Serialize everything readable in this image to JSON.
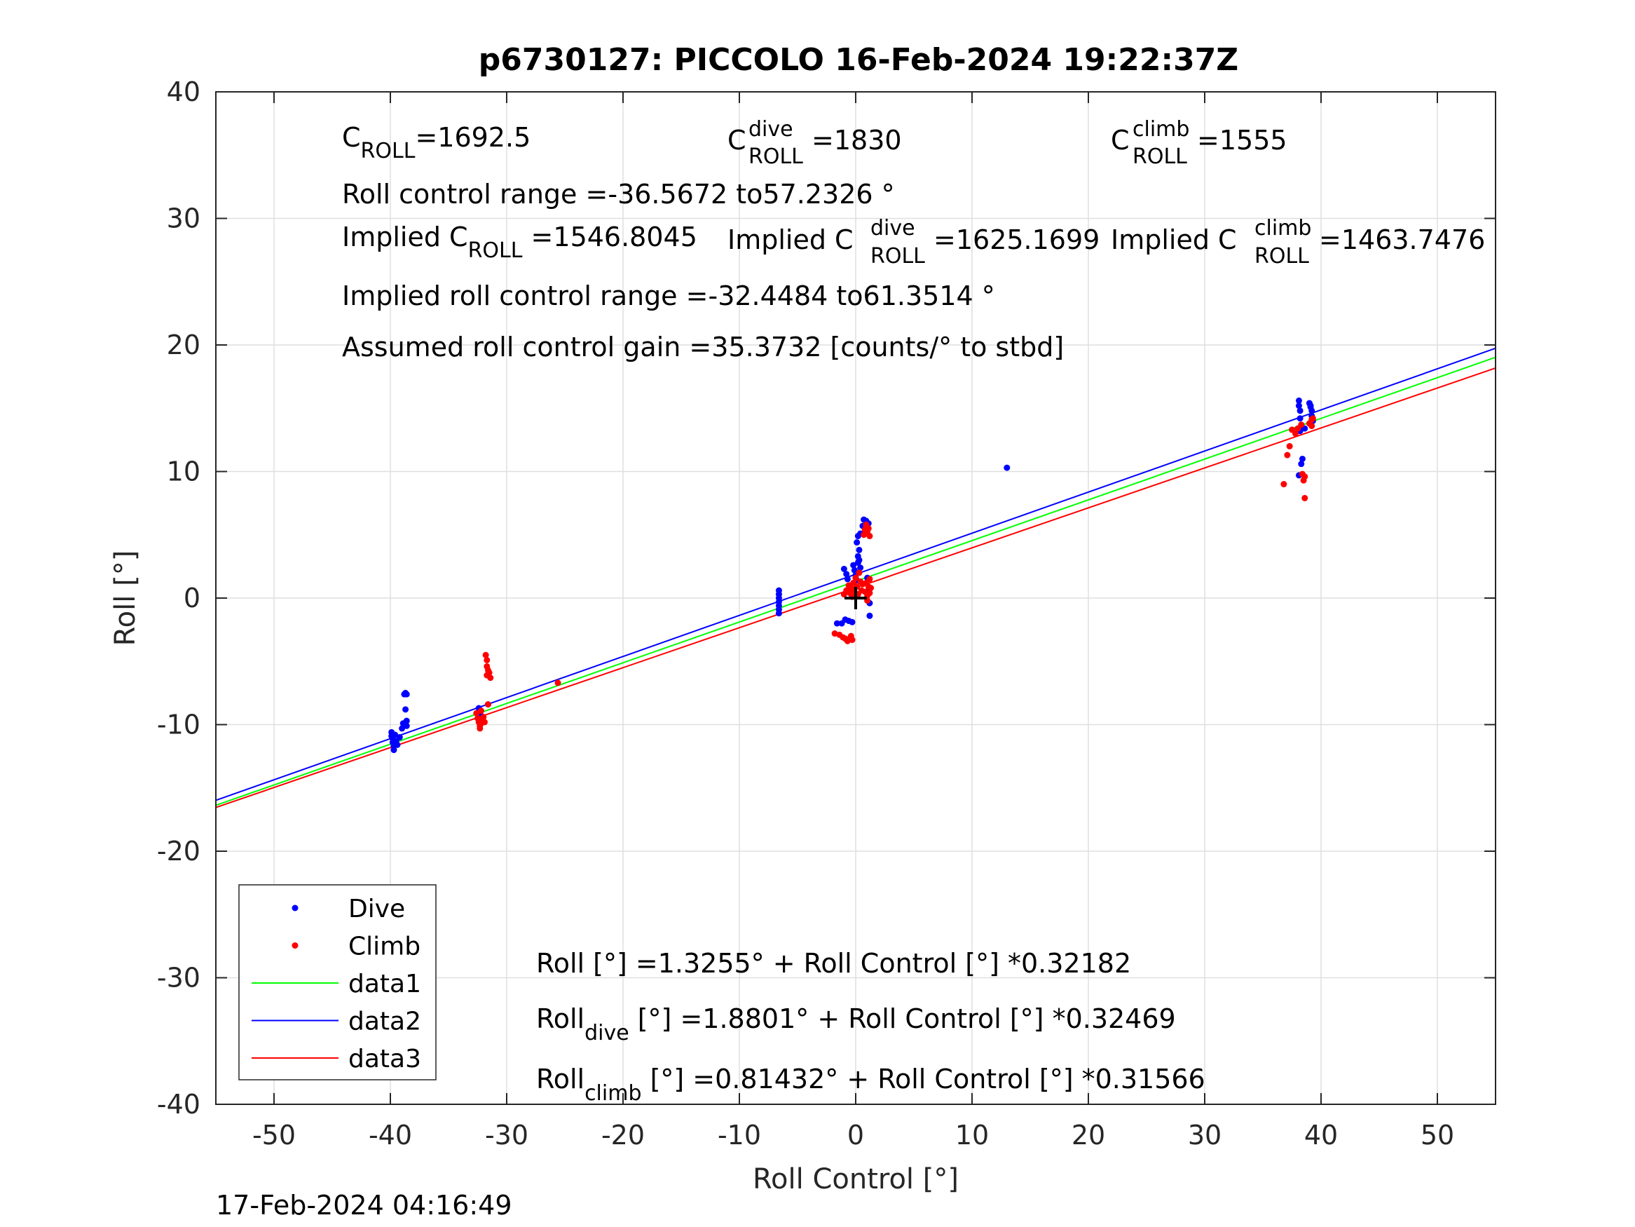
{
  "chart_data": {
    "type": "scatter",
    "title": "p6730127: PICCOLO 16-Feb-2024 19:22:37Z",
    "xlabel": "Roll Control [°]",
    "ylabel": "Roll [°]",
    "xlim": [
      -55,
      55
    ],
    "ylim": [
      -40,
      40
    ],
    "xticks": [
      -50,
      -40,
      -30,
      -20,
      -10,
      0,
      10,
      20,
      30,
      40,
      50
    ],
    "yticks": [
      -40,
      -30,
      -20,
      -10,
      0,
      10,
      20,
      30,
      40
    ],
    "grid": true,
    "legend_position": "lower-left",
    "timestamp": "17-Feb-2024 04:16:49",
    "legend": [
      {
        "label": "Dive",
        "kind": "marker",
        "color": "#0000ff"
      },
      {
        "label": "Climb",
        "kind": "marker",
        "color": "#ff0000"
      },
      {
        "label": "data1",
        "kind": "line",
        "color": "#00ff00"
      },
      {
        "label": "data2",
        "kind": "line",
        "color": "#0000ff"
      },
      {
        "label": "data3",
        "kind": "line",
        "color": "#ff0000"
      }
    ],
    "annotations": {
      "c_roll": {
        "main": "C",
        "sub": "ROLL",
        "value": "=1692.5"
      },
      "c_roll_dive": {
        "main": "C",
        "sup": "dive",
        "sub": "ROLL",
        "value": " =1830"
      },
      "c_roll_climb": {
        "main": "C",
        "sup": "climb",
        "sub": "ROLL",
        "value": " =1555"
      },
      "range": "Roll control range =-36.5672 to57.2326 °",
      "implied_c_roll": {
        "main": "Implied C",
        "sub": "ROLL",
        "value": " =1546.8045"
      },
      "implied_c_roll_dive": {
        "main": "Implied C",
        "sup": "dive",
        "sub": "ROLL",
        "value": " =1625.1699"
      },
      "implied_c_roll_climb": {
        "main": "Implied C",
        "sup": "climb",
        "sub": "ROLL",
        "value": " =1463.7476"
      },
      "implied_range": "Implied roll control range =-32.4484 to61.3514 °",
      "gain": "Assumed roll control gain =35.3732 [counts/° to stbd]",
      "fit_all": "Roll [°] =1.3255° + Roll Control [°] *0.32182",
      "fit_dive": {
        "main": "Roll",
        "sub": "dive",
        "rest": " [°] =1.8801° + Roll Control [°] *0.32469"
      },
      "fit_climb": {
        "main": "Roll",
        "sub": "climb",
        "rest": " [°] =0.81432° + Roll Control [°] *0.31566"
      }
    },
    "series": [
      {
        "name": "data1",
        "type": "line",
        "color": "#00ff00",
        "intercept": 1.3255,
        "slope": 0.32182
      },
      {
        "name": "data2",
        "type": "line",
        "color": "#0000ff",
        "intercept": 1.8801,
        "slope": 0.32469
      },
      {
        "name": "data3",
        "type": "line",
        "color": "#ff0000",
        "intercept": 0.81432,
        "slope": 0.31566
      },
      {
        "name": "Dive",
        "type": "scatter",
        "color": "#0000ff",
        "points": [
          [
            -39.9,
            -10.6
          ],
          [
            -39.9,
            -10.9
          ],
          [
            -39.8,
            -11.1
          ],
          [
            -39.8,
            -11.4
          ],
          [
            -39.7,
            -11.7
          ],
          [
            -39.7,
            -12.0
          ],
          [
            -39.6,
            -10.8
          ],
          [
            -39.5,
            -11.3
          ],
          [
            -39.4,
            -11.6
          ],
          [
            -39.2,
            -11.0
          ],
          [
            -39.0,
            -10.3
          ],
          [
            -38.9,
            -9.9
          ],
          [
            -38.8,
            -7.6
          ],
          [
            -38.7,
            -7.5
          ],
          [
            -38.6,
            -7.6
          ],
          [
            -38.7,
            -8.8
          ],
          [
            -38.6,
            -9.7
          ],
          [
            -38.6,
            -10.1
          ],
          [
            -32.4,
            -8.7
          ],
          [
            -32.2,
            -9.3
          ],
          [
            -31.6,
            -8.4
          ],
          [
            -6.6,
            0.6
          ],
          [
            -6.6,
            0.3
          ],
          [
            -6.6,
            0.0
          ],
          [
            -6.6,
            -0.3
          ],
          [
            -6.6,
            -0.6
          ],
          [
            -6.6,
            -0.9
          ],
          [
            -6.6,
            -1.2
          ],
          [
            -1.6,
            -2.0
          ],
          [
            -1.2,
            -2.0
          ],
          [
            -1.0,
            2.3
          ],
          [
            -0.9,
            -1.7
          ],
          [
            -0.8,
            1.9
          ],
          [
            -0.7,
            1.5
          ],
          [
            -0.6,
            -1.8
          ],
          [
            -0.5,
            1.0
          ],
          [
            -0.4,
            0.6
          ],
          [
            -0.3,
            -1.9
          ],
          [
            -0.2,
            2.6
          ],
          [
            -0.1,
            2.2
          ],
          [
            0.0,
            1.8
          ],
          [
            0.1,
            1.4
          ],
          [
            0.2,
            2.8
          ],
          [
            0.3,
            3.0
          ],
          [
            0.4,
            2.4
          ],
          [
            0.1,
            4.4
          ],
          [
            0.2,
            4.9
          ],
          [
            0.3,
            3.8
          ],
          [
            0.2,
            3.3
          ],
          [
            0.4,
            5.1
          ],
          [
            0.6,
            5.7
          ],
          [
            0.7,
            6.2
          ],
          [
            0.9,
            6.1
          ],
          [
            1.1,
            5.9
          ],
          [
            0.8,
            5.3
          ],
          [
            1.0,
            1.6
          ],
          [
            1.1,
            0.6
          ],
          [
            1.2,
            -0.4
          ],
          [
            1.2,
            -1.4
          ],
          [
            13.0,
            10.3
          ],
          [
            38.1,
            15.6
          ],
          [
            38.1,
            15.2
          ],
          [
            38.2,
            14.8
          ],
          [
            38.2,
            14.2
          ],
          [
            38.3,
            13.6
          ],
          [
            38.2,
            13.2
          ],
          [
            38.4,
            11.0
          ],
          [
            38.3,
            10.6
          ],
          [
            38.1,
            9.7
          ],
          [
            38.6,
            13.4
          ],
          [
            39.0,
            15.4
          ],
          [
            39.1,
            15.1
          ],
          [
            39.2,
            14.8
          ],
          [
            39.2,
            14.4
          ],
          [
            39.3,
            14.0
          ],
          [
            39.1,
            15.2
          ]
        ]
      },
      {
        "name": "Climb",
        "type": "scatter",
        "color": "#ff0000",
        "points": [
          [
            -32.6,
            -9.1
          ],
          [
            -32.5,
            -9.5
          ],
          [
            -32.4,
            -9.8
          ],
          [
            -32.3,
            -10.1
          ],
          [
            -32.2,
            -9.9
          ],
          [
            -32.1,
            -9.6
          ],
          [
            -32.0,
            -9.4
          ],
          [
            -31.9,
            -9.8
          ],
          [
            -32.3,
            -10.3
          ],
          [
            -32.2,
            -8.9
          ],
          [
            -31.8,
            -4.5
          ],
          [
            -31.7,
            -4.9
          ],
          [
            -31.7,
            -5.4
          ],
          [
            -31.6,
            -5.7
          ],
          [
            -31.5,
            -5.9
          ],
          [
            -31.4,
            -6.3
          ],
          [
            -31.7,
            -6.1
          ],
          [
            -31.6,
            -8.4
          ],
          [
            -25.6,
            -6.7
          ],
          [
            -1.8,
            -2.8
          ],
          [
            -1.4,
            -2.9
          ],
          [
            -1.1,
            -3.1
          ],
          [
            -0.9,
            -3.2
          ],
          [
            -0.7,
            -3.4
          ],
          [
            -0.5,
            -3.2
          ],
          [
            -0.4,
            -3.0
          ],
          [
            -0.3,
            -3.3
          ],
          [
            -1.0,
            0.3
          ],
          [
            -0.8,
            0.6
          ],
          [
            -0.6,
            1.0
          ],
          [
            -0.5,
            0.4
          ],
          [
            -0.4,
            0.8
          ],
          [
            -0.3,
            0.1
          ],
          [
            -0.2,
            1.2
          ],
          [
            -0.1,
            0.5
          ],
          [
            0.0,
            1.6
          ],
          [
            0.1,
            0.9
          ],
          [
            0.2,
            0.3
          ],
          [
            0.3,
            2.0
          ],
          [
            0.4,
            1.3
          ],
          [
            0.5,
            0.6
          ],
          [
            0.6,
            1.1
          ],
          [
            0.8,
            0.5
          ],
          [
            0.9,
            1.2
          ],
          [
            1.0,
            0.2
          ],
          [
            1.1,
            0.9
          ],
          [
            1.2,
            1.5
          ],
          [
            1.2,
            0.4
          ],
          [
            1.3,
            0.8
          ],
          [
            0.7,
            5.0
          ],
          [
            0.8,
            5.4
          ],
          [
            0.9,
            5.6
          ],
          [
            1.0,
            5.2
          ],
          [
            1.1,
            5.5
          ],
          [
            1.2,
            4.9
          ],
          [
            0.9,
            5.8
          ],
          [
            1.0,
            -0.2
          ],
          [
            36.8,
            9.0
          ],
          [
            37.1,
            11.3
          ],
          [
            37.3,
            12.0
          ],
          [
            37.5,
            13.3
          ],
          [
            37.8,
            13.0
          ],
          [
            38.0,
            13.4
          ],
          [
            38.3,
            13.7
          ],
          [
            38.5,
            9.3
          ],
          [
            38.6,
            9.6
          ],
          [
            38.4,
            9.8
          ],
          [
            38.6,
            7.9
          ],
          [
            39.0,
            13.8
          ],
          [
            39.2,
            14.1
          ],
          [
            39.2,
            13.6
          ],
          [
            39.3,
            14.2
          ]
        ]
      }
    ]
  }
}
